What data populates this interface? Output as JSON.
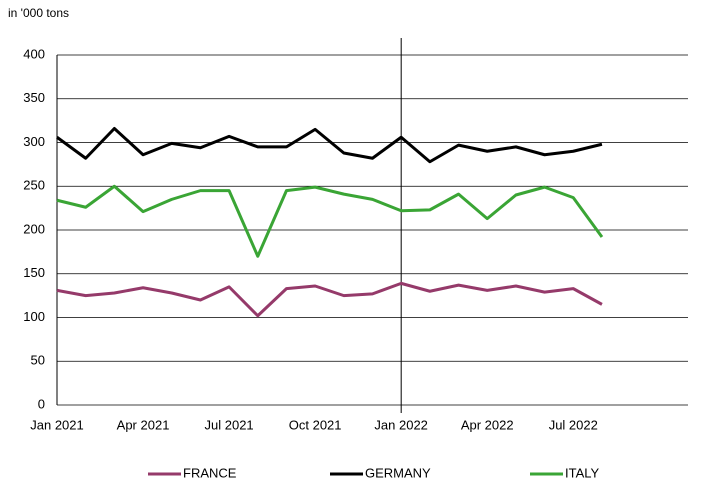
{
  "chart_data": {
    "type": "line",
    "y_label": "in '000 tons",
    "categories": [
      "Jan 2021",
      null,
      null,
      "Apr 2021",
      null,
      null,
      "Jul 2021",
      null,
      null,
      "Oct 2021",
      null,
      null,
      "Jan 2022",
      null,
      null,
      "Apr 2022",
      null,
      null,
      "Jul 2022",
      null,
      null,
      null,
      null
    ],
    "series": [
      {
        "name": "FRANCE",
        "color": "#953a6a",
        "values": [
          131,
          125,
          128,
          134,
          128,
          120,
          135,
          102,
          133,
          136,
          125,
          127,
          139,
          130,
          137,
          131,
          136,
          129,
          133,
          115,
          null,
          null,
          null
        ]
      },
      {
        "name": "GERMANY",
        "color": "#000000",
        "values": [
          306,
          282,
          316,
          286,
          299,
          294,
          307,
          295,
          295,
          315,
          288,
          282,
          306,
          278,
          297,
          290,
          295,
          286,
          290,
          298,
          null,
          null,
          null
        ]
      },
      {
        "name": "ITALY",
        "color": "#3aa535",
        "values": [
          234,
          226,
          250,
          221,
          235,
          245,
          245,
          170,
          245,
          249,
          241,
          235,
          222,
          223,
          241,
          213,
          240,
          249,
          237,
          192,
          null,
          null,
          null
        ]
      }
    ],
    "ylim": [
      0,
      400
    ],
    "yticks": [
      0,
      50,
      100,
      150,
      200,
      250,
      300,
      350,
      400
    ],
    "grid": true,
    "legend": "bottom"
  }
}
